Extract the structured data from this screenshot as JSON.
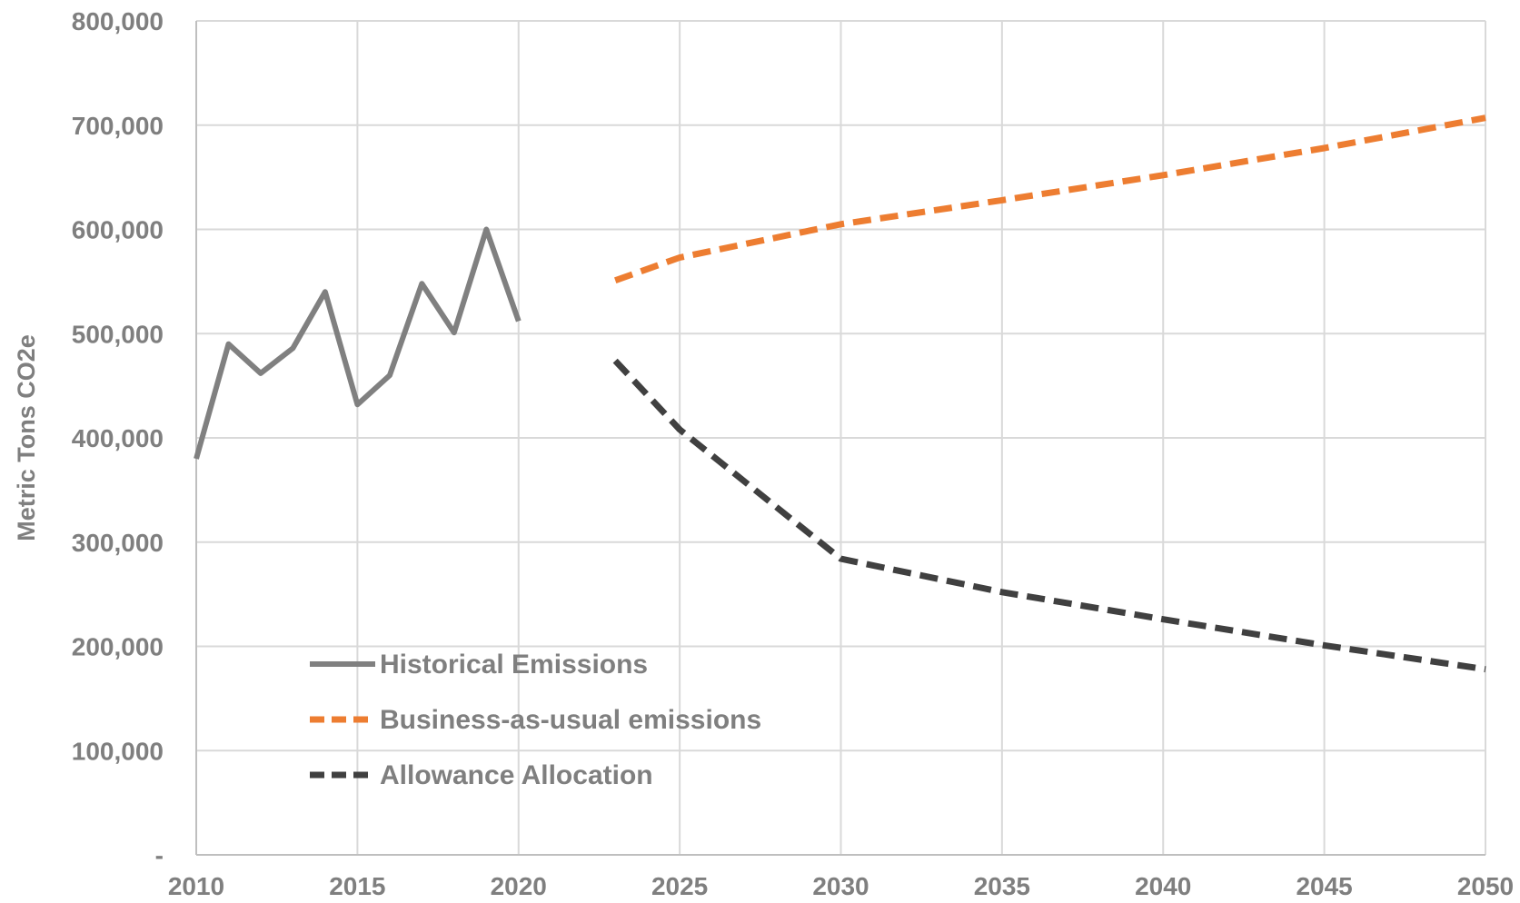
{
  "chart_data": {
    "type": "line",
    "title": "",
    "xlabel": "",
    "ylabel": "Metric Tons CO2e",
    "xlim": [
      2010,
      2050
    ],
    "ylim": [
      0,
      800000
    ],
    "x_ticks": [
      "2010",
      "2015",
      "2020",
      "2025",
      "2030",
      "2035",
      "2040",
      "2045",
      "2050"
    ],
    "x_tick_values": [
      2010,
      2015,
      2020,
      2025,
      2030,
      2035,
      2040,
      2045,
      2050
    ],
    "y_ticks": [
      "-",
      "100,000",
      "200,000",
      "300,000",
      "400,000",
      "500,000",
      "600,000",
      "700,000",
      "800,000"
    ],
    "y_tick_values": [
      0,
      100000,
      200000,
      300000,
      400000,
      500000,
      600000,
      700000,
      800000
    ],
    "grid": true,
    "legend_position": "lower-left",
    "series": [
      {
        "name": "Historical Emissions",
        "color": "#808080",
        "style": "solid",
        "x": [
          2010,
          2011,
          2012,
          2013,
          2014,
          2015,
          2016,
          2017,
          2018,
          2019,
          2020
        ],
        "y": [
          380000,
          490000,
          462000,
          486000,
          540000,
          432000,
          460000,
          548000,
          501000,
          600000,
          512000
        ]
      },
      {
        "name": "Business-as-usual emissions",
        "color": "#ed7d31",
        "style": "dashed",
        "x": [
          2023,
          2025,
          2030,
          2035,
          2040,
          2045,
          2050
        ],
        "y": [
          551000,
          573000,
          605000,
          628000,
          652000,
          678000,
          707000
        ]
      },
      {
        "name": "Allowance Allocation",
        "color": "#404040",
        "style": "dashed",
        "x": [
          2023,
          2025,
          2030,
          2035,
          2040,
          2045,
          2050
        ],
        "y": [
          474000,
          408000,
          284000,
          252000,
          226000,
          201000,
          178000
        ]
      }
    ]
  }
}
